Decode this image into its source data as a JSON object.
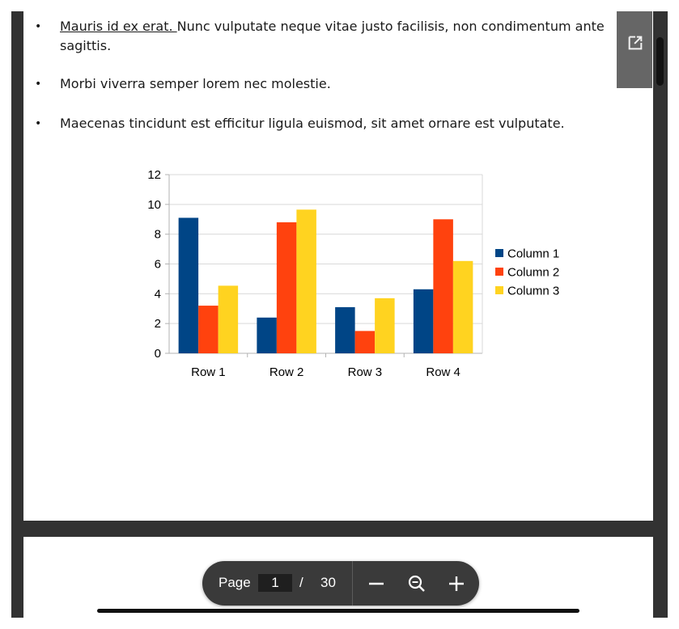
{
  "document": {
    "bullets": [
      {
        "link_text": "Mauris id ex erat. ",
        "text": "Nunc vulputate neque vitae justo facilisis, non condimentum ante sagittis."
      },
      {
        "text": "Morbi viverra semper lorem nec molestie."
      },
      {
        "text": "Maecenas tincidunt est efficitur ligula euismod, sit amet ornare est vulputate."
      }
    ],
    "bullet_glyph": "•"
  },
  "chart_data": {
    "type": "bar",
    "categories": [
      "Row 1",
      "Row 2",
      "Row 3",
      "Row 4"
    ],
    "series": [
      {
        "name": "Column 1",
        "values": [
          9.1,
          2.4,
          3.1,
          4.3
        ],
        "color": "#004586"
      },
      {
        "name": "Column 2",
        "values": [
          3.2,
          8.8,
          1.5,
          9.0
        ],
        "color": "#ff420e"
      },
      {
        "name": "Column 3",
        "values": [
          4.54,
          9.65,
          3.7,
          6.2
        ],
        "color": "#ffd320"
      }
    ],
    "yticks": [
      0,
      2,
      4,
      6,
      8,
      10,
      12
    ],
    "ylim": [
      0,
      12
    ],
    "title": "",
    "xlabel": "",
    "ylabel": "",
    "grid": true,
    "legend": "right"
  },
  "toolbar": {
    "page_label": "Page",
    "current_page": "1",
    "separator": "/",
    "total_pages": "30",
    "zoom_out_icon": "minus-icon",
    "zoom_fit_icon": "zoom-magnifier-icon",
    "zoom_in_icon": "plus-icon"
  },
  "popout": {
    "icon": "open-in-new-icon"
  },
  "colors": {
    "viewer_background": "#323232",
    "toolbar_background": "#3a3a3a",
    "page_background": "#ffffff"
  }
}
